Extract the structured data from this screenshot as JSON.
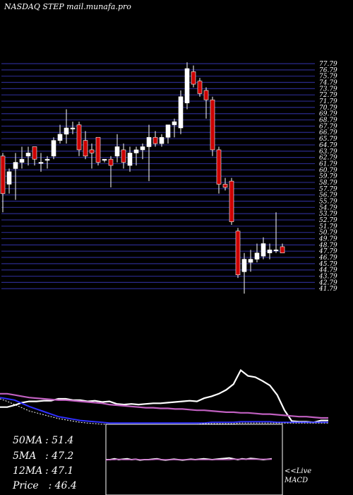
{
  "header": {
    "title": "NASDAQ STEP mail.munafa.pro"
  },
  "colors": {
    "background": "#000000",
    "grid": "#2a2a8a",
    "up": "#ffffff",
    "down": "#cc0000",
    "ma_white": "#ffffff",
    "ma_violet": "#c060c0",
    "ma_blue": "#3030ff",
    "axis_text": "#ffffff"
  },
  "chart_data": [
    {
      "type": "candlestick",
      "title": "",
      "ylim": [
        41.59,
        77.79
      ],
      "y_ticks": [
        77.79,
        76.79,
        75.79,
        74.79,
        73.79,
        72.79,
        71.79,
        70.79,
        69.79,
        68.79,
        67.79,
        66.79,
        65.79,
        64.79,
        63.79,
        62.79,
        61.79,
        60.79,
        59.79,
        58.79,
        57.79,
        56.79,
        55.79,
        54.79,
        53.79,
        52.79,
        51.79,
        50.79,
        49.79,
        48.79,
        47.79,
        46.79,
        45.79,
        44.79,
        43.79,
        42.79,
        41.79
      ],
      "grid": true,
      "candles": [
        {
          "o": 63.0,
          "h": 63.5,
          "l": 54.0,
          "c": 57.0
        },
        {
          "o": 58.5,
          "h": 61.0,
          "l": 57.0,
          "c": 60.5
        },
        {
          "o": 61.0,
          "h": 63.5,
          "l": 56.0,
          "c": 62.0
        },
        {
          "o": 62.0,
          "h": 64.5,
          "l": 61.0,
          "c": 62.5
        },
        {
          "o": 63.0,
          "h": 64.5,
          "l": 61.5,
          "c": 63.5
        },
        {
          "o": 64.5,
          "h": 64.5,
          "l": 61.5,
          "c": 62.5
        },
        {
          "o": 62.0,
          "h": 63.5,
          "l": 60.5,
          "c": 62.0
        },
        {
          "o": 62.5,
          "h": 63.0,
          "l": 61.0,
          "c": 62.5
        },
        {
          "o": 63.0,
          "h": 66.0,
          "l": 62.5,
          "c": 65.5
        },
        {
          "o": 65.5,
          "h": 68.0,
          "l": 65.0,
          "c": 66.5
        },
        {
          "o": 66.5,
          "h": 70.5,
          "l": 65.0,
          "c": 67.5
        },
        {
          "o": 67.5,
          "h": 68.5,
          "l": 66.5,
          "c": 67.5
        },
        {
          "o": 68.0,
          "h": 68.5,
          "l": 63.0,
          "c": 64.0
        },
        {
          "o": 65.5,
          "h": 67.0,
          "l": 62.5,
          "c": 63.0
        },
        {
          "o": 64.0,
          "h": 65.0,
          "l": 61.0,
          "c": 63.5
        },
        {
          "o": 66.0,
          "h": 66.0,
          "l": 61.5,
          "c": 62.0
        },
        {
          "o": 62.5,
          "h": 62.5,
          "l": 62.0,
          "c": 62.5
        },
        {
          "o": 62.5,
          "h": 63.0,
          "l": 58.0,
          "c": 61.5
        },
        {
          "o": 63.0,
          "h": 66.5,
          "l": 62.0,
          "c": 64.5
        },
        {
          "o": 64.0,
          "h": 65.0,
          "l": 61.0,
          "c": 62.0
        },
        {
          "o": 61.5,
          "h": 64.5,
          "l": 60.5,
          "c": 63.5
        },
        {
          "o": 63.5,
          "h": 64.5,
          "l": 61.5,
          "c": 64.0
        },
        {
          "o": 64.0,
          "h": 65.0,
          "l": 62.5,
          "c": 64.5
        },
        {
          "o": 64.5,
          "h": 68.0,
          "l": 59.0,
          "c": 66.0
        },
        {
          "o": 66.0,
          "h": 67.0,
          "l": 64.5,
          "c": 65.0
        },
        {
          "o": 65.0,
          "h": 66.5,
          "l": 64.5,
          "c": 66.0
        },
        {
          "o": 66.0,
          "h": 68.0,
          "l": 65.0,
          "c": 68.0
        },
        {
          "o": 68.0,
          "h": 69.0,
          "l": 66.0,
          "c": 68.5
        },
        {
          "o": 67.5,
          "h": 73.5,
          "l": 66.5,
          "c": 72.5
        },
        {
          "o": 71.5,
          "h": 78.0,
          "l": 70.5,
          "c": 77.0
        },
        {
          "o": 76.5,
          "h": 77.5,
          "l": 74.0,
          "c": 74.5
        },
        {
          "o": 75.0,
          "h": 75.5,
          "l": 72.5,
          "c": 73.0
        },
        {
          "o": 73.5,
          "h": 74.0,
          "l": 69.0,
          "c": 72.0
        },
        {
          "o": 72.0,
          "h": 72.5,
          "l": 63.0,
          "c": 64.0
        },
        {
          "o": 64.0,
          "h": 64.5,
          "l": 57.0,
          "c": 58.5
        },
        {
          "o": 58.5,
          "h": 59.5,
          "l": 57.5,
          "c": 58.0
        },
        {
          "o": 59.0,
          "h": 59.5,
          "l": 52.0,
          "c": 52.5
        },
        {
          "o": 51.0,
          "h": 51.5,
          "l": 43.5,
          "c": 44.0
        },
        {
          "o": 44.5,
          "h": 47.5,
          "l": 41.0,
          "c": 46.5
        },
        {
          "o": 46.0,
          "h": 48.0,
          "l": 44.5,
          "c": 46.5
        },
        {
          "o": 46.5,
          "h": 49.0,
          "l": 46.0,
          "c": 47.5
        },
        {
          "o": 47.0,
          "h": 50.0,
          "l": 46.5,
          "c": 49.0
        },
        {
          "o": 47.5,
          "h": 49.0,
          "l": 46.5,
          "c": 48.0
        },
        {
          "o": 48.0,
          "h": 54.0,
          "l": 47.5,
          "c": 48.0
        },
        {
          "o": 48.5,
          "h": 49.0,
          "l": 47.5,
          "c": 47.5
        }
      ]
    },
    {
      "type": "line",
      "title": "",
      "series": [
        {
          "values": [
            27,
            27,
            30,
            34,
            36,
            36,
            37,
            37,
            40,
            40,
            38,
            38,
            36,
            37,
            35,
            36,
            32,
            31,
            32,
            31,
            32,
            33,
            33,
            34,
            35,
            36,
            37,
            36,
            41,
            44,
            48,
            54,
            63,
            85,
            76,
            74,
            68,
            61,
            46,
            22,
            5,
            4,
            4,
            3,
            6,
            6
          ]
        },
        {
          "values": [
            48,
            48,
            46,
            44,
            42,
            41,
            40,
            39,
            38,
            38,
            37,
            36,
            35,
            34,
            33,
            31,
            30,
            29,
            28,
            27,
            26,
            26,
            25,
            25,
            24,
            24,
            23,
            22,
            22,
            21,
            20,
            19,
            19,
            18,
            18,
            17,
            16,
            16,
            15,
            14,
            13,
            12,
            12,
            11,
            10,
            10
          ]
        },
        {
          "values": [
            42,
            40,
            38,
            33,
            28,
            24,
            20,
            16,
            12,
            10,
            8,
            6,
            5,
            4,
            3,
            2,
            2,
            2,
            2,
            2,
            2,
            2,
            2,
            2,
            2,
            2,
            2,
            2,
            2,
            3,
            3,
            3,
            3,
            4,
            4,
            4,
            4,
            4,
            3,
            3,
            3,
            3,
            3,
            3,
            3,
            3
          ]
        },
        {
          "values": [
            40,
            36,
            31,
            26,
            21,
            18,
            15,
            12,
            9,
            7,
            5,
            3,
            2,
            1,
            0,
            0,
            0,
            0,
            0,
            0,
            0,
            0,
            0,
            0,
            0,
            0,
            0,
            0,
            1,
            1,
            1,
            1,
            1,
            2,
            2,
            2,
            2,
            2,
            2,
            2,
            2,
            2,
            2,
            2,
            2,
            2
          ]
        }
      ]
    },
    {
      "type": "line",
      "title": "",
      "series": [
        {
          "values": [
            50,
            50,
            52,
            50,
            51,
            52,
            50,
            51,
            49,
            50,
            50,
            51,
            52,
            50,
            49,
            50,
            51,
            50,
            49,
            50,
            51,
            50,
            51,
            52,
            51,
            50,
            51,
            52,
            53,
            54,
            52,
            50,
            52,
            51,
            53,
            52,
            51,
            50,
            51,
            52
          ]
        },
        {
          "values": [
            49,
            50,
            50,
            51,
            50,
            50,
            50,
            51,
            50,
            50,
            50,
            50,
            51,
            50,
            50,
            50,
            50,
            50,
            50,
            50,
            50,
            50,
            50,
            50,
            50,
            50,
            50,
            50,
            50,
            50,
            51,
            51,
            51,
            51,
            51,
            51,
            51,
            51,
            51,
            51
          ]
        }
      ]
    }
  ],
  "stats": [
    {
      "label": "50MA",
      "value": ": 51.4"
    },
    {
      "label": "5MA",
      "value": ": 47.2"
    },
    {
      "label": "12MA",
      "value": ": 47.1"
    },
    {
      "label": "Price",
      "value": "  : 46.4"
    }
  ],
  "macd_note": {
    "line1": "<<Live",
    "line2": "MACD"
  }
}
